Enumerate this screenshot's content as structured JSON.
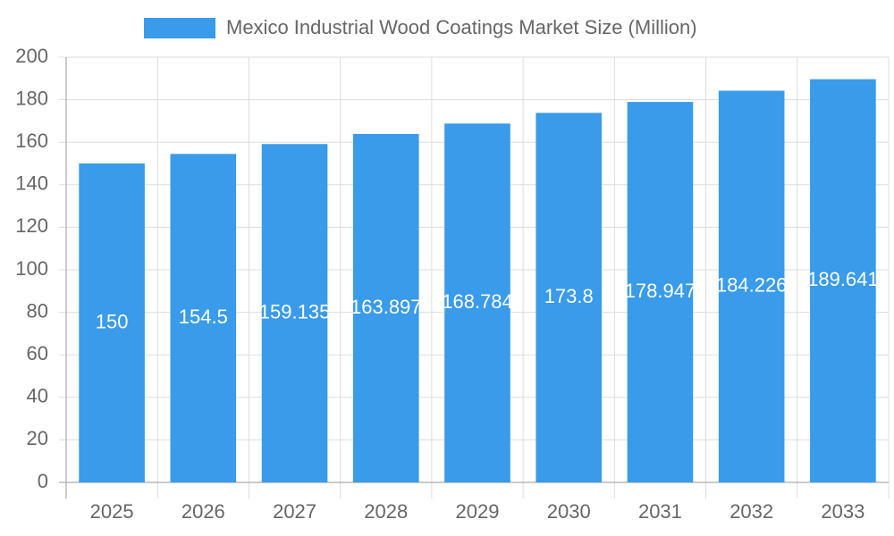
{
  "chart_data": {
    "type": "bar",
    "legend_label": "Mexico Industrial Wood Coatings Market Size (Million)",
    "categories": [
      "2025",
      "2026",
      "2027",
      "2028",
      "2029",
      "2030",
      "2031",
      "2032",
      "2033"
    ],
    "values": [
      150,
      154.5,
      159.135,
      163.897,
      168.784,
      173.8,
      178.947,
      184.226,
      189.641
    ],
    "color": "#399be9",
    "ylim": [
      0,
      200
    ],
    "yticks": [
      0,
      20,
      40,
      60,
      80,
      100,
      120,
      140,
      160,
      180,
      200
    ],
    "grid": true,
    "legend": "top"
  }
}
